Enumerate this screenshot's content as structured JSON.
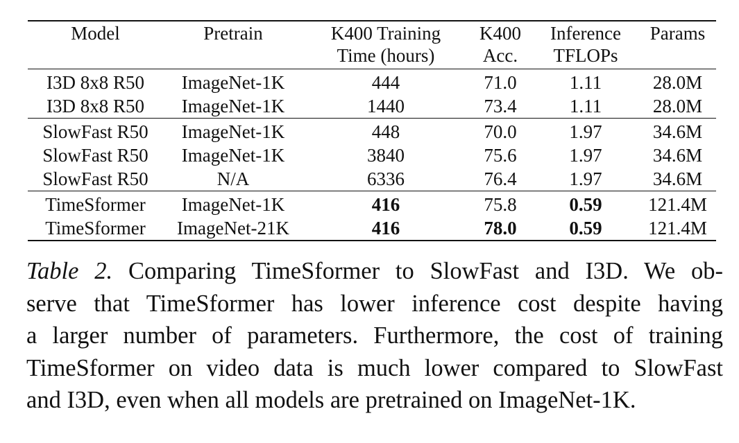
{
  "table": {
    "headers": [
      [
        "Model",
        ""
      ],
      [
        "Pretrain",
        ""
      ],
      [
        "K400 Training",
        "Time (hours)"
      ],
      [
        "K400",
        "Acc."
      ],
      [
        "Inference",
        "TFLOPs"
      ],
      [
        "Params",
        ""
      ]
    ],
    "groups": [
      [
        [
          "I3D 8x8 R50",
          "ImageNet-1K",
          "444",
          "71.0",
          "1.11",
          "28.0M"
        ],
        [
          "I3D 8x8 R50",
          "ImageNet-1K",
          "1440",
          "73.4",
          "1.11",
          "28.0M"
        ]
      ],
      [
        [
          "SlowFast R50",
          "ImageNet-1K",
          "448",
          "70.0",
          "1.97",
          "34.6M"
        ],
        [
          "SlowFast R50",
          "ImageNet-1K",
          "3840",
          "75.6",
          "1.97",
          "34.6M"
        ],
        [
          "SlowFast R50",
          "N/A",
          "6336",
          "76.4",
          "1.97",
          "34.6M"
        ]
      ],
      [
        [
          "TimeSformer",
          "ImageNet-1K",
          "416",
          "75.8",
          "0.59",
          "121.4M"
        ],
        [
          "TimeSformer",
          "ImageNet-21K",
          "416",
          "78.0",
          "0.59",
          "121.4M"
        ]
      ]
    ]
  },
  "caption": {
    "label": "Table 2.",
    "lines": [
      " Comparing TimeSformer to SlowFast and I3D. We ob-",
      "serve that TimeSformer has lower inference cost despite having",
      "a larger number of parameters. Furthermore, the cost of training",
      "TimeSformer on video data is much lower compared to SlowFast",
      "and I3D, even when all models are pretrained on ImageNet-1K."
    ]
  }
}
